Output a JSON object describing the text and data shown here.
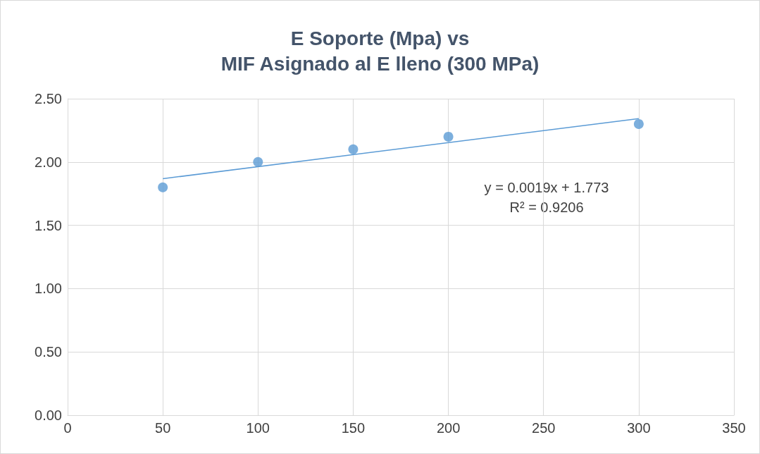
{
  "chart_data": {
    "type": "scatter",
    "title": "E Soporte (Mpa) vs\nMIF Asignado al E lleno (300 MPa)",
    "x": [
      50,
      100,
      150,
      200,
      300
    ],
    "series": [
      {
        "color": "#5b9bd5",
        "values": [
          1.8,
          2.0,
          2.1,
          2.2,
          2.3
        ]
      },
      {
        "type": "line",
        "color": "#5b9bd5",
        "x": [
          50,
          300
        ],
        "values": [
          1.868,
          2.343
        ],
        "marker": "none"
      }
    ],
    "xlim": [
      0,
      350
    ],
    "xticks": [
      0,
      50,
      100,
      150,
      200,
      250,
      300,
      350
    ],
    "ylim": [
      0,
      2.5
    ],
    "yticks": [
      {
        "value": 0,
        "label": "0.00"
      },
      {
        "value": 0.5,
        "label": "0.50"
      },
      {
        "value": 1,
        "label": "1.00"
      },
      {
        "value": 1.5,
        "label": "1.50"
      },
      {
        "value": 2,
        "label": "2.00"
      },
      {
        "value": 2.5,
        "label": "2.50"
      }
    ],
    "annotations": [
      "y = 0.0019x + 1.773",
      "R² = 0.9206"
    ],
    "grid": true,
    "marker": "circle"
  }
}
